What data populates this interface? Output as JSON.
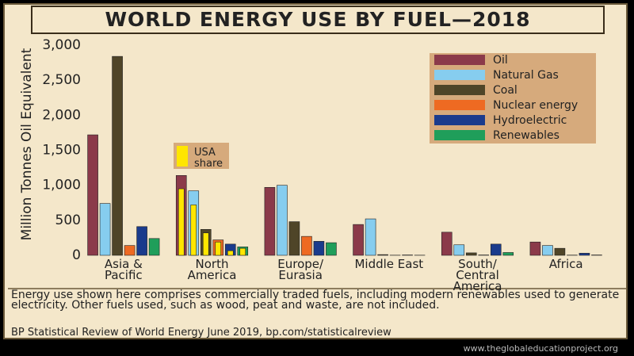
{
  "chart_data": {
    "type": "bar",
    "title": "WORLD ENERGY USE BY FUEL—2018",
    "y_label": "Million Tonnes Oil Equivalent",
    "categories": [
      "Asia & Pacific",
      "North America",
      "Europe/ Eurasia",
      "Middle East",
      "South/ Central America",
      "Africa"
    ],
    "series": [
      {
        "name": "Oil",
        "color": "#8b3a4a",
        "values": [
          1720,
          1140,
          970,
          440,
          330,
          190
        ]
      },
      {
        "name": "Natural Gas",
        "color": "#86cdef",
        "values": [
          740,
          920,
          1000,
          520,
          150,
          140
        ]
      },
      {
        "name": "Coal",
        "color": "#4f4528",
        "values": [
          2840,
          370,
          480,
          10,
          35,
          100
        ]
      },
      {
        "name": "Nuclear energy",
        "color": "#ee6a22",
        "values": [
          140,
          220,
          270,
          2,
          5,
          3
        ]
      },
      {
        "name": "Hydroelectric",
        "color": "#1a3b8c",
        "values": [
          410,
          160,
          200,
          5,
          160,
          30
        ]
      },
      {
        "name": "Renewables",
        "color": "#1f9e5a",
        "values": [
          240,
          120,
          180,
          2,
          40,
          5
        ]
      }
    ],
    "usa_share": {
      "name": "USA share",
      "color": "#ffe600",
      "category": 1,
      "values": [
        950,
        720,
        320,
        190,
        65,
        100
      ]
    },
    "ylim": [
      0,
      3000
    ],
    "yticks": [
      0,
      500,
      {
        "value": 1000,
        "label": "1,000"
      },
      {
        "value": 1500,
        "label": "1,500"
      },
      {
        "value": 2000,
        "label": "2,000"
      },
      {
        "value": 2500,
        "label": "2,500"
      },
      {
        "value": 3000,
        "label": "3,000"
      }
    ],
    "grid": false,
    "legend": "top-right",
    "note": "Energy use shown here comprises commercially traded fuels, including modern renewables used to generate electricity. Other fuels used, such as wood, peat and waste, are not included.",
    "source": "BP Statistical Review of World Energy June 2019, bp.com/statisticalreview",
    "watermark": "www.theglobaleducationproject.org"
  }
}
